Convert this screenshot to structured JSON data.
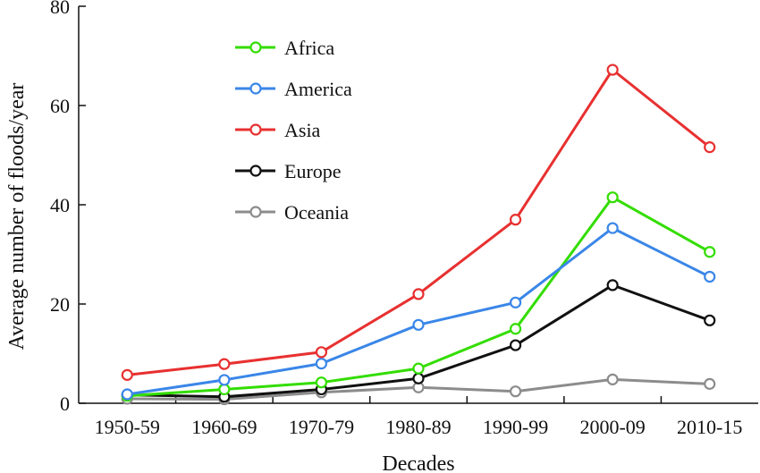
{
  "chart_data": {
    "type": "line",
    "xlabel": "Decades",
    "ylabel": "Average number of floods/year",
    "categories": [
      "1950-59",
      "1960-69",
      "1970-79",
      "1980-89",
      "1990-99",
      "2000-09",
      "2010-15"
    ],
    "yticks": [
      "0",
      "20",
      "40",
      "60",
      "80"
    ],
    "ylim": [
      0,
      80
    ],
    "grid": false,
    "legend_position": "top-left",
    "series": [
      {
        "name": "Africa",
        "color": "#33dd00",
        "values": [
          1.5,
          2.8,
          4.2,
          7.0,
          15.0,
          41.5,
          30.5
        ]
      },
      {
        "name": "America",
        "color": "#3a86e8",
        "values": [
          1.8,
          4.7,
          8.0,
          15.8,
          20.3,
          35.3,
          25.5
        ]
      },
      {
        "name": "Asia",
        "color": "#e83030",
        "values": [
          5.7,
          7.9,
          10.3,
          22.0,
          37.0,
          67.2,
          51.6
        ]
      },
      {
        "name": "Europe",
        "color": "#111111",
        "values": [
          1.7,
          1.3,
          2.8,
          5.0,
          11.7,
          23.8,
          16.7
        ]
      },
      {
        "name": "Oceania",
        "color": "#8c8c8c",
        "values": [
          0.9,
          0.8,
          2.2,
          3.2,
          2.4,
          4.8,
          3.9
        ]
      }
    ]
  }
}
